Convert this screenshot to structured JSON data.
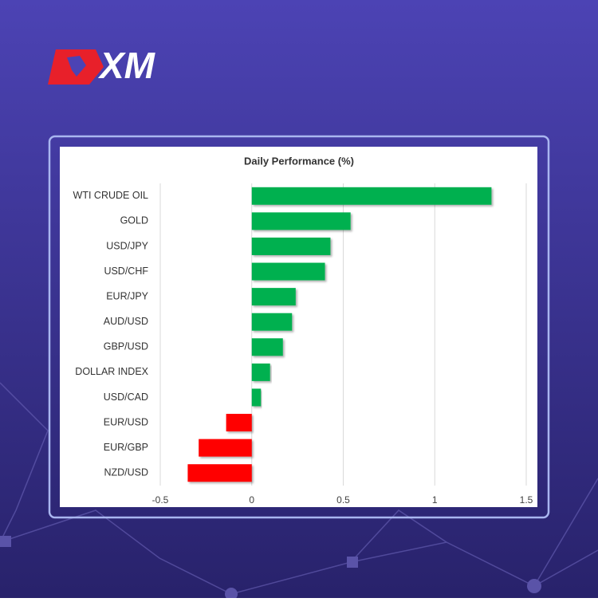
{
  "brand": {
    "logo_text": "XM"
  },
  "chart_data": {
    "type": "bar",
    "orientation": "horizontal",
    "title": "Daily Performance (%)",
    "categories": [
      "WTI CRUDE OIL",
      "GOLD",
      "USD/JPY",
      "USD/CHF",
      "EUR/JPY",
      "AUD/USD",
      "GBP/USD",
      "DOLLAR INDEX",
      "USD/CAD",
      "EUR/USD",
      "EUR/GBP",
      "NZD/USD"
    ],
    "values": [
      1.31,
      0.54,
      0.43,
      0.4,
      0.24,
      0.22,
      0.17,
      0.1,
      0.05,
      -0.14,
      -0.29,
      -0.35
    ],
    "positive_color": "#00b050",
    "negative_color": "#ff0000",
    "xlim": [
      -0.5,
      1.5
    ],
    "xticks": [
      -0.5,
      0,
      0.5,
      1,
      1.5
    ],
    "grid": true
  }
}
